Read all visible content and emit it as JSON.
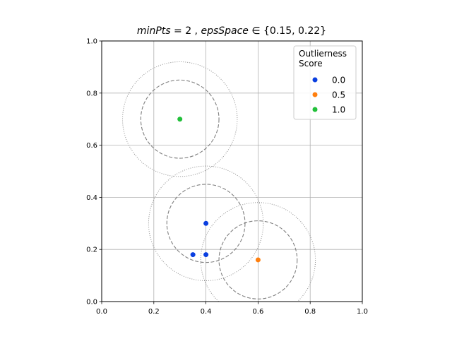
{
  "chart_data": {
    "type": "scatter",
    "title": {
      "italic_a": "minPts",
      "plain_a": " = 2 , ",
      "italic_b": "epsSpace",
      "plain_b": " ∈ {0.15, 0.22}"
    },
    "xlabel": "",
    "ylabel": "",
    "xlim": [
      0.0,
      1.0
    ],
    "ylim": [
      0.0,
      1.0
    ],
    "xticks": [
      "0.0",
      "0.2",
      "0.4",
      "0.6",
      "0.8",
      "1.0"
    ],
    "yticks": [
      "0.0",
      "0.2",
      "0.4",
      "0.6",
      "0.8",
      "1.0"
    ],
    "grid": true,
    "aspect": "equal",
    "legend": {
      "title": "Outlierness\nScore",
      "placement": "top-right",
      "entries": [
        {
          "label": "0.0",
          "color": "#0a3fe0"
        },
        {
          "label": "0.5",
          "color": "#ff7f0e"
        },
        {
          "label": "1.0",
          "color": "#22c03a"
        }
      ]
    },
    "points": [
      {
        "x": 0.3,
        "y": 0.7,
        "score": "1.0"
      },
      {
        "x": 0.4,
        "y": 0.3,
        "score": "0.0"
      },
      {
        "x": 0.35,
        "y": 0.18,
        "score": "0.0"
      },
      {
        "x": 0.4,
        "y": 0.18,
        "score": "0.0"
      },
      {
        "x": 0.6,
        "y": 0.16,
        "score": "0.5"
      }
    ],
    "circles": [
      {
        "x": 0.3,
        "y": 0.7,
        "radius": 0.15,
        "style": "dashed"
      },
      {
        "x": 0.3,
        "y": 0.7,
        "radius": 0.22,
        "style": "dotted"
      },
      {
        "x": 0.4,
        "y": 0.3,
        "radius": 0.15,
        "style": "dashed"
      },
      {
        "x": 0.4,
        "y": 0.3,
        "radius": 0.22,
        "style": "dotted"
      },
      {
        "x": 0.6,
        "y": 0.16,
        "radius": 0.15,
        "style": "dashed"
      },
      {
        "x": 0.6,
        "y": 0.16,
        "radius": 0.22,
        "style": "dotted"
      }
    ]
  }
}
